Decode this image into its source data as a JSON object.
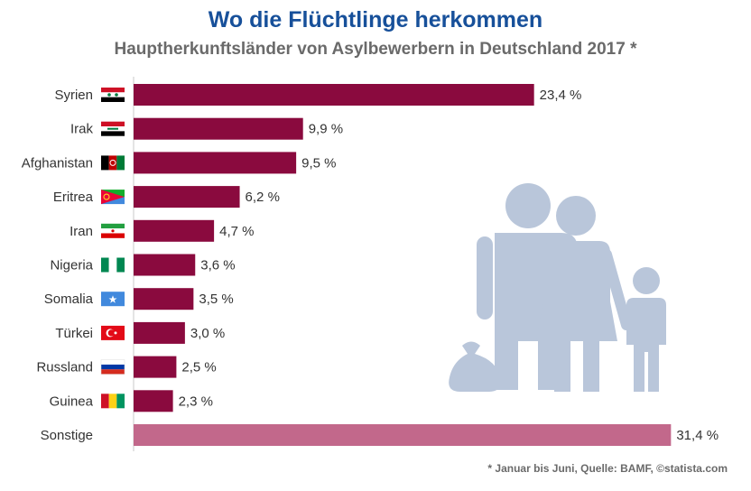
{
  "title": "Wo die Flüchtlinge herkommen",
  "subtitle": "Hauptherkunftsländer von Asylbewerbern in Deutschland 2017 *",
  "footnote": "* Januar bis Juni, Quelle: BAMF, ©statista.com",
  "colors": {
    "bar": "#8a0a3e",
    "bar_other": "#c2688b",
    "illustration": "#b9c6da"
  },
  "icons": {
    "illustration": "refugee-family-icon"
  },
  "chart_data": {
    "type": "bar",
    "orientation": "horizontal",
    "categories": [
      "Syrien",
      "Irak",
      "Afghanistan",
      "Eritrea",
      "Iran",
      "Nigeria",
      "Somalia",
      "Türkei",
      "Russland",
      "Guinea",
      "Sonstige"
    ],
    "values": [
      23.4,
      9.9,
      9.5,
      6.2,
      4.7,
      3.6,
      3.5,
      3.0,
      2.5,
      2.3,
      31.4
    ],
    "value_labels": [
      "23,4 %",
      "9,9 %",
      "9,5 %",
      "6,2 %",
      "4,7 %",
      "3,6 %",
      "3,5 %",
      "3,0 %",
      "2,5 %",
      "2,3 %",
      "31,4 %"
    ],
    "flags": [
      "syria-flag-icon",
      "iraq-flag-icon",
      "afghanistan-flag-icon",
      "eritrea-flag-icon",
      "iran-flag-icon",
      "nigeria-flag-icon",
      "somalia-flag-icon",
      "turkey-flag-icon",
      "russia-flag-icon",
      "guinea-flag-icon",
      ""
    ],
    "unit": "%"
  }
}
